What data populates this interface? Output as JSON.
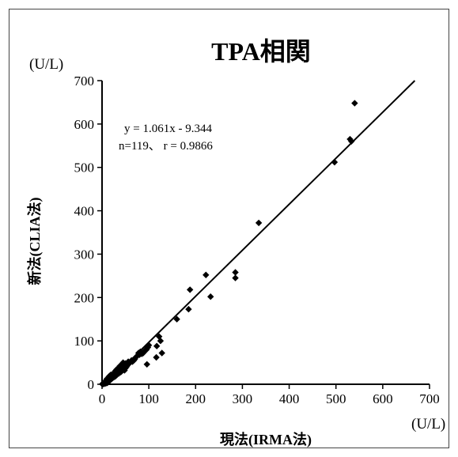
{
  "chart_data": {
    "type": "scatter",
    "title": "TPA相関",
    "xlabel": "現法(IRMA法)",
    "ylabel": "新法(CLIA法)",
    "x_unit": "(U/L)",
    "y_unit": "(U/L)",
    "xlim": [
      0,
      700
    ],
    "ylim": [
      0,
      700
    ],
    "xticks": [
      0,
      100,
      200,
      300,
      400,
      500,
      600,
      700
    ],
    "yticks": [
      0,
      100,
      200,
      300,
      400,
      500,
      600,
      700
    ],
    "grid": false,
    "legend": "none",
    "annotations": [
      "y = 1.061x - 9.344",
      "n=119、 r = 0.9866"
    ],
    "regression": {
      "slope": 1.061,
      "intercept": -9.344
    },
    "marker_color": "#000000",
    "series": [
      {
        "points": [
          [
            540,
            648
          ],
          [
            530,
            565
          ],
          [
            533,
            560
          ],
          [
            497,
            512
          ],
          [
            335,
            372
          ],
          [
            285,
            258
          ],
          [
            285,
            245
          ],
          [
            222,
            252
          ],
          [
            232,
            202
          ],
          [
            188,
            218
          ],
          [
            185,
            173
          ],
          [
            160,
            150
          ],
          [
            122,
            110
          ],
          [
            125,
            100
          ],
          [
            128,
            72
          ],
          [
            117,
            88
          ],
          [
            116,
            62
          ],
          [
            100,
            90
          ],
          [
            98,
            85
          ],
          [
            95,
            80
          ],
          [
            92,
            78
          ],
          [
            90,
            75
          ],
          [
            88,
            72
          ],
          [
            85,
            70
          ],
          [
            82,
            75
          ],
          [
            80,
            68
          ],
          [
            78,
            72
          ],
          [
            96,
            46
          ],
          [
            75,
            65
          ],
          [
            70,
            58
          ],
          [
            68,
            55
          ],
          [
            65,
            52
          ],
          [
            63,
            55
          ],
          [
            60,
            50
          ],
          [
            58,
            48
          ],
          [
            56,
            52
          ],
          [
            55,
            45
          ],
          [
            53,
            42
          ],
          [
            52,
            40
          ],
          [
            50,
            48
          ],
          [
            50,
            37
          ],
          [
            48,
            32
          ],
          [
            47,
            40
          ],
          [
            45,
            50
          ],
          [
            45,
            35
          ],
          [
            42,
            45
          ],
          [
            42,
            30
          ],
          [
            40,
            38
          ],
          [
            40,
            28
          ],
          [
            38,
            42
          ],
          [
            38,
            32
          ],
          [
            36,
            25
          ],
          [
            35,
            36
          ],
          [
            34,
            30
          ],
          [
            33,
            26
          ],
          [
            32,
            22
          ],
          [
            31,
            34
          ],
          [
            30,
            28
          ],
          [
            30,
            20
          ],
          [
            29,
            24
          ],
          [
            28,
            30
          ],
          [
            28,
            18
          ],
          [
            27,
            22
          ],
          [
            26,
            26
          ],
          [
            25,
            20
          ],
          [
            25,
            16
          ],
          [
            24,
            24
          ],
          [
            23,
            18
          ],
          [
            22,
            22
          ],
          [
            22,
            14
          ],
          [
            21,
            20
          ],
          [
            20,
            16
          ],
          [
            20,
            12
          ],
          [
            19,
            22
          ],
          [
            19,
            18
          ],
          [
            18,
            14
          ],
          [
            18,
            10
          ],
          [
            17,
            20
          ],
          [
            17,
            16
          ],
          [
            16,
            12
          ],
          [
            16,
            8
          ],
          [
            15,
            18
          ],
          [
            15,
            14
          ],
          [
            15,
            10
          ],
          [
            14,
            16
          ],
          [
            14,
            12
          ],
          [
            14,
            8
          ],
          [
            13,
            14
          ],
          [
            13,
            10
          ],
          [
            13,
            6
          ],
          [
            12,
            12
          ],
          [
            12,
            8
          ],
          [
            12,
            4
          ],
          [
            11,
            10
          ],
          [
            11,
            6
          ],
          [
            11,
            3
          ],
          [
            10,
            12
          ],
          [
            10,
            8
          ],
          [
            10,
            5
          ],
          [
            9,
            9
          ],
          [
            9,
            6
          ],
          [
            9,
            3
          ],
          [
            8,
            8
          ],
          [
            8,
            5
          ],
          [
            8,
            2
          ],
          [
            7,
            6
          ],
          [
            7,
            3
          ],
          [
            6,
            5
          ],
          [
            6,
            2
          ],
          [
            5,
            4
          ],
          [
            5,
            2
          ],
          [
            4,
            3
          ],
          [
            4,
            1
          ],
          [
            3,
            2
          ],
          [
            3,
            1
          ],
          [
            2,
            2
          ],
          [
            2,
            1
          ],
          [
            1,
            1
          ],
          [
            1,
            0
          ]
        ]
      }
    ]
  }
}
